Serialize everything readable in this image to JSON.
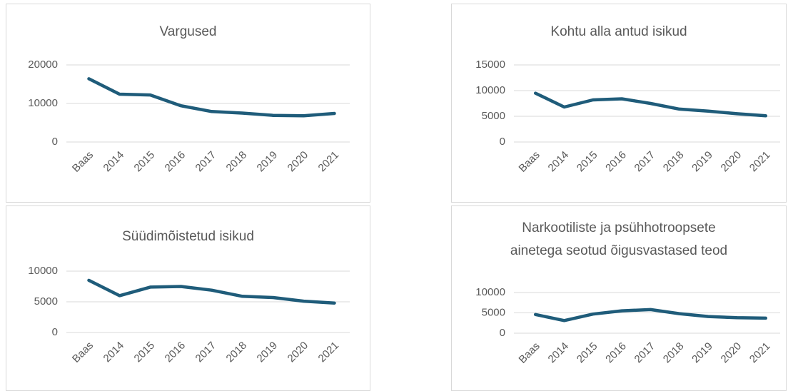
{
  "chart_data": [
    {
      "type": "line",
      "title": "Vargused",
      "categories": [
        "Baas",
        "2014",
        "2015",
        "2016",
        "2017",
        "2018",
        "2019",
        "2020",
        "2021"
      ],
      "values": [
        16400,
        12400,
        12200,
        9400,
        7900,
        7500,
        6900,
        6800,
        7400
      ],
      "color": "#1f5c7a",
      "ylim": [
        0,
        20000
      ],
      "yticks": [
        0,
        10000,
        20000
      ],
      "grid": true
    },
    {
      "type": "line",
      "title": "Kohtu alla antud isikud",
      "categories": [
        "Baas",
        "2014",
        "2015",
        "2016",
        "2017",
        "2018",
        "2019",
        "2020",
        "2021"
      ],
      "values": [
        9500,
        6800,
        8200,
        8400,
        7500,
        6400,
        6000,
        5500,
        5100
      ],
      "color": "#1f5c7a",
      "ylim": [
        0,
        15000
      ],
      "yticks": [
        0,
        5000,
        10000,
        15000
      ],
      "grid": true
    },
    {
      "type": "line",
      "title": "Süüdimõistetud isikud",
      "categories": [
        "Baas",
        "2014",
        "2015",
        "2016",
        "2017",
        "2018",
        "2019",
        "2020",
        "2021"
      ],
      "values": [
        8500,
        6000,
        7400,
        7500,
        6900,
        5900,
        5700,
        5100,
        4800
      ],
      "color": "#1f5c7a",
      "ylim": [
        0,
        10000
      ],
      "yticks": [
        0,
        5000,
        10000
      ],
      "grid": true
    },
    {
      "type": "line",
      "title": [
        "Narkootiliste ja psühhotroopsete",
        "ainetega seotud õigusvastased teod"
      ],
      "categories": [
        "Baas",
        "2014",
        "2015",
        "2016",
        "2017",
        "2018",
        "2019",
        "2020",
        "2021"
      ],
      "values": [
        4600,
        3100,
        4700,
        5500,
        5800,
        4800,
        4100,
        3800,
        3700
      ],
      "color": "#1f5c7a",
      "ylim": [
        0,
        10000
      ],
      "yticks": [
        0,
        5000,
        10000
      ],
      "grid": true
    }
  ]
}
